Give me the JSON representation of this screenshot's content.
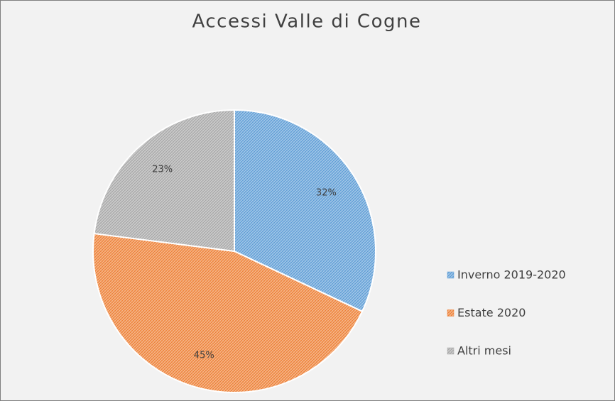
{
  "chart_data": {
    "type": "pie",
    "title": "Accessi Valle di Cogne",
    "categories": [
      "Inverno 2019-2020",
      "Estate 2020",
      "Altri mesi"
    ],
    "values": [
      32,
      45,
      23
    ],
    "value_labels": [
      "32%",
      "45%",
      "23%"
    ],
    "colors": [
      "#5b9bd5",
      "#ed7d31",
      "#a5a5a5"
    ],
    "legend": "right"
  }
}
